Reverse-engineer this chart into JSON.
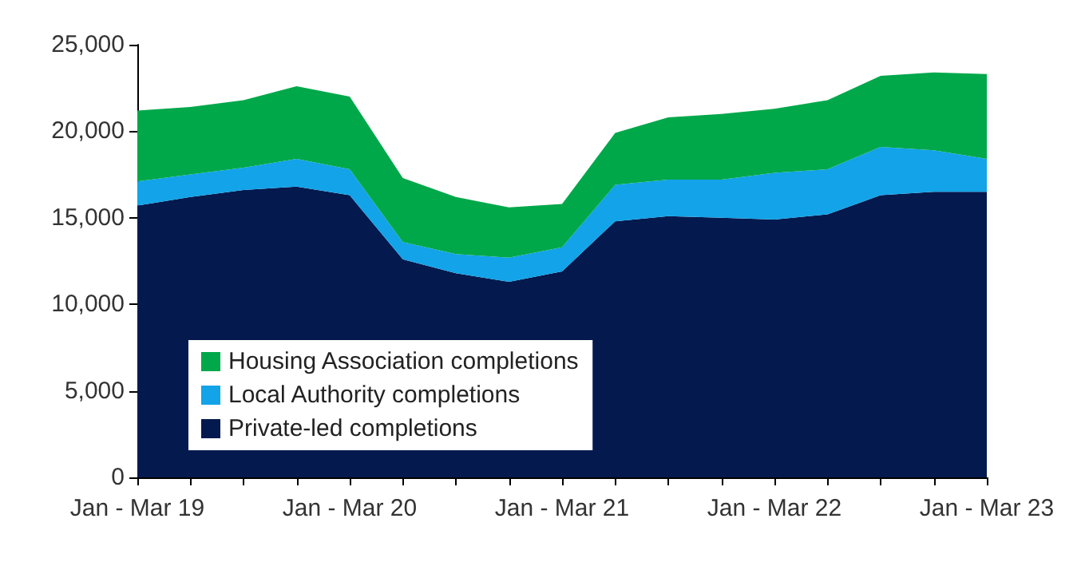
{
  "chart_data": {
    "type": "area",
    "stacked": true,
    "categories": [
      "Jan - Mar 19",
      null,
      null,
      null,
      "Jan - Mar 20",
      null,
      null,
      null,
      "Jan - Mar 21",
      null,
      null,
      null,
      "Jan - Mar 22",
      null,
      null,
      null,
      "Jan - Mar 23"
    ],
    "series": [
      {
        "name": "Private-led completions",
        "color": "#041a4f",
        "values": [
          15700,
          16200,
          16600,
          16800,
          16300,
          12600,
          11800,
          11300,
          11900,
          14800,
          15100,
          15000,
          14900,
          15200,
          16300,
          16500,
          16500
        ]
      },
      {
        "name": "Local Authority completions",
        "color": "#12a3e8",
        "values": [
          1400,
          1300,
          1300,
          1600,
          1500,
          1000,
          1100,
          1400,
          1400,
          2100,
          2100,
          2200,
          2700,
          2600,
          2800,
          2400,
          1900
        ]
      },
      {
        "name": "Housing Association completions",
        "color": "#00a84a",
        "values": [
          4100,
          3900,
          3900,
          4200,
          4200,
          3700,
          3300,
          2900,
          2500,
          3000,
          3600,
          3800,
          3700,
          4000,
          4100,
          4500,
          4900
        ]
      }
    ],
    "ylim": [
      0,
      25000
    ],
    "yticks": [
      0,
      {
        "value": 5000,
        "label": "5,000"
      },
      {
        "value": 10000,
        "label": "10,000"
      },
      {
        "value": 15000,
        "label": "15,000"
      },
      {
        "value": 20000,
        "label": "20,000"
      },
      {
        "value": 25000,
        "label": "25,000"
      }
    ],
    "grid": false,
    "legend": "bottom left"
  }
}
